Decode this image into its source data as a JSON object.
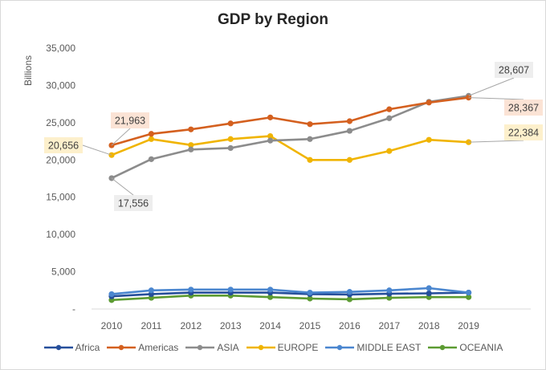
{
  "chart_data": {
    "type": "line",
    "title": "GDP by Region",
    "xlabel": "",
    "ylabel": "Billions",
    "ylim": [
      0,
      35000
    ],
    "yticks": [
      0,
      5000,
      10000,
      15000,
      20000,
      25000,
      30000,
      35000
    ],
    "ytick_labels": [
      "-",
      "5,000",
      "10,000",
      "15,000",
      "20,000",
      "25,000",
      "30,000",
      "35,000"
    ],
    "grid": false,
    "legend_position": "bottom",
    "categories": [
      "2010",
      "2011",
      "2012",
      "2013",
      "2014",
      "2015",
      "2016",
      "2017",
      "2018",
      "2019"
    ],
    "series": [
      {
        "name": "Africa",
        "color": "#264f9b",
        "values": [
          1700,
          2000,
          2200,
          2200,
          2200,
          2000,
          1950,
          2050,
          2100,
          2200
        ]
      },
      {
        "name": "Americas",
        "color": "#d4601f",
        "values": [
          21963,
          23500,
          24100,
          24900,
          25700,
          24800,
          25200,
          26800,
          27700,
          28367
        ]
      },
      {
        "name": "ASIA",
        "color": "#8c8c8c",
        "values": [
          17556,
          20100,
          21400,
          21600,
          22600,
          22800,
          23900,
          25600,
          27800,
          28607
        ]
      },
      {
        "name": "EUROPE",
        "color": "#f0b400",
        "values": [
          20656,
          22800,
          22000,
          22800,
          23200,
          20000,
          20000,
          21200,
          22700,
          22384
        ]
      },
      {
        "name": "MIDDLE EAST",
        "color": "#4a86cf",
        "values": [
          2000,
          2500,
          2600,
          2600,
          2600,
          2200,
          2300,
          2500,
          2800,
          2200
        ]
      },
      {
        "name": "OCEANIA",
        "color": "#5c9b32",
        "values": [
          1200,
          1500,
          1800,
          1800,
          1600,
          1400,
          1300,
          1500,
          1600,
          1600
        ]
      }
    ],
    "data_labels": [
      {
        "series": "Americas",
        "category": "2010",
        "text": "21,963",
        "bg": "#fbe3d5"
      },
      {
        "series": "EUROPE",
        "category": "2010",
        "text": "20,656",
        "bg": "#fdf0cc"
      },
      {
        "series": "ASIA",
        "category": "2010",
        "text": "17,556",
        "bg": "#eeeeee"
      },
      {
        "series": "ASIA",
        "category": "2019",
        "text": "28,607",
        "bg": "#eeeeee"
      },
      {
        "series": "Americas",
        "category": "2019",
        "text": "28,367",
        "bg": "#fbe3d5"
      },
      {
        "series": "EUROPE",
        "category": "2019",
        "text": "22,384",
        "bg": "#fdf0cc"
      }
    ]
  }
}
